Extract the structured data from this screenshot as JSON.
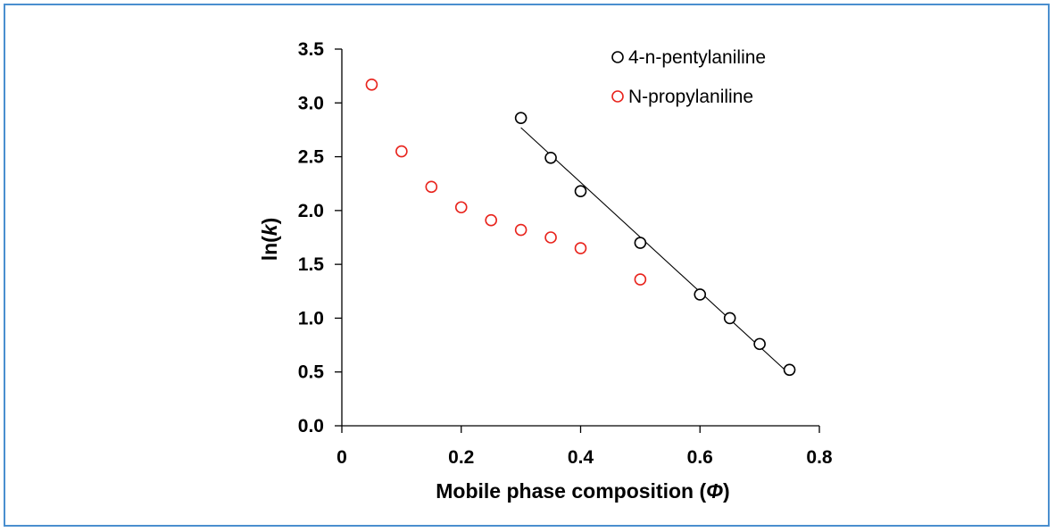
{
  "chart_data": {
    "type": "scatter",
    "title": "",
    "xlabel": {
      "main": "Mobile phase composition (",
      "symbol": "Φ",
      "close": ")"
    },
    "ylabel": {
      "main": "ln(",
      "symbol": "k",
      "close": ")"
    },
    "xlim": [
      0,
      0.8
    ],
    "ylim": [
      0,
      3.5
    ],
    "xticks": [
      0,
      0.2,
      0.4,
      0.6,
      0.8
    ],
    "xtick_labels": [
      "0",
      "0.2",
      "0.4",
      "0.6",
      "0.8"
    ],
    "yticks": [
      0,
      0.5,
      1.0,
      1.5,
      2.0,
      2.5,
      3.0,
      3.5
    ],
    "ytick_labels": [
      "0.0",
      "0.5",
      "1.0",
      "1.5",
      "2.0",
      "2.5",
      "3.0",
      "3.5"
    ],
    "grid": false,
    "legend_position": "top-right",
    "series": [
      {
        "name": "4-n-pentylaniline",
        "color": "#000000",
        "marker": "open-circle",
        "x": [
          0.3,
          0.35,
          0.4,
          0.5,
          0.6,
          0.65,
          0.7,
          0.75
        ],
        "y": [
          2.86,
          2.49,
          2.18,
          1.7,
          1.22,
          1.0,
          0.76,
          0.52
        ],
        "trendline": {
          "x": [
            0.3,
            0.75
          ],
          "y": [
            2.77,
            0.48
          ]
        }
      },
      {
        "name": "N-propylaniline",
        "color": "#e8231c",
        "marker": "open-circle",
        "x": [
          0.05,
          0.1,
          0.15,
          0.2,
          0.25,
          0.3,
          0.35,
          0.4,
          0.5
        ],
        "y": [
          3.17,
          2.55,
          2.22,
          2.03,
          1.91,
          1.82,
          1.75,
          1.65,
          1.36
        ]
      }
    ]
  }
}
